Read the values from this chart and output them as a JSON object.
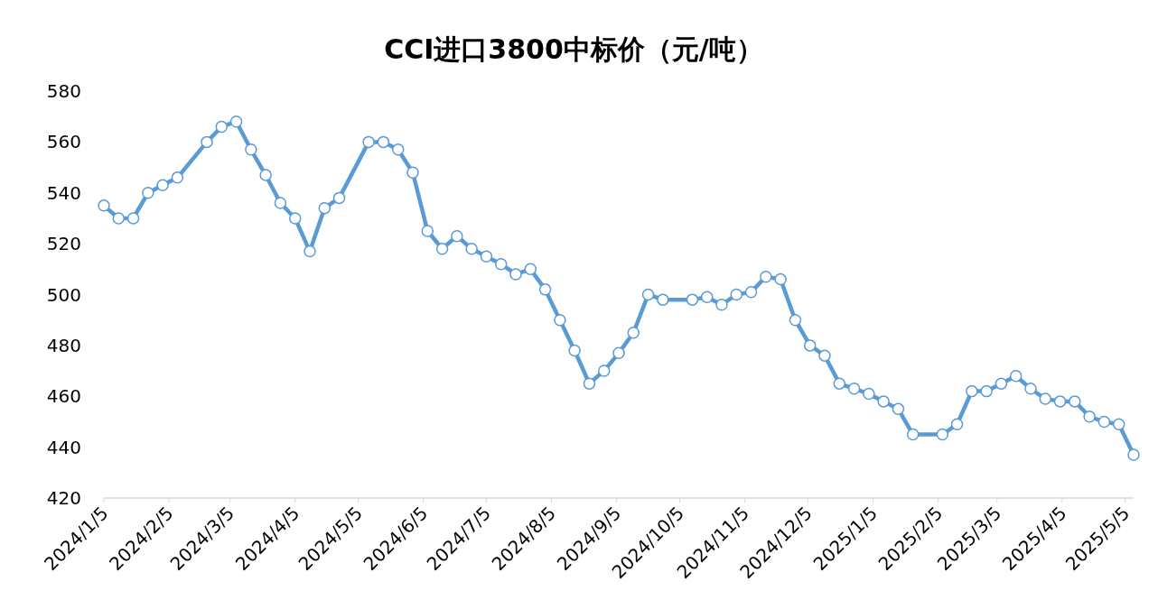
{
  "chart_data": {
    "type": "line",
    "title": "CCI进口3800中标价（元/吨）",
    "x": [
      "2024-01-05",
      "2024-01-12",
      "2024-01-19",
      "2024-01-26",
      "2024-02-02",
      "2024-02-09",
      "2024-02-23",
      "2024-03-01",
      "2024-03-08",
      "2024-03-15",
      "2024-03-22",
      "2024-03-29",
      "2024-04-05",
      "2024-04-12",
      "2024-04-19",
      "2024-04-26",
      "2024-05-10",
      "2024-05-17",
      "2024-05-24",
      "2024-05-31",
      "2024-06-07",
      "2024-06-14",
      "2024-06-21",
      "2024-06-28",
      "2024-07-05",
      "2024-07-12",
      "2024-07-19",
      "2024-07-26",
      "2024-08-02",
      "2024-08-09",
      "2024-08-16",
      "2024-08-23",
      "2024-08-30",
      "2024-09-06",
      "2024-09-13",
      "2024-09-20",
      "2024-09-27",
      "2024-10-11",
      "2024-10-18",
      "2024-10-25",
      "2024-11-01",
      "2024-11-08",
      "2024-11-15",
      "2024-11-22",
      "2024-11-29",
      "2024-12-06",
      "2024-12-13",
      "2024-12-20",
      "2024-12-27",
      "2025-01-03",
      "2025-01-10",
      "2025-01-17",
      "2025-01-24",
      "2025-02-07",
      "2025-02-14",
      "2025-02-21",
      "2025-02-28",
      "2025-03-07",
      "2025-03-14",
      "2025-03-21",
      "2025-03-28",
      "2025-04-04",
      "2025-04-11",
      "2025-04-18",
      "2025-04-25",
      "2025-05-02",
      "2025-05-09"
    ],
    "series": [
      {
        "color": "#5b9bd5",
        "values": [
          535,
          530,
          530,
          540,
          543,
          546,
          560,
          566,
          568,
          557,
          547,
          536,
          530,
          517,
          534,
          538,
          560,
          560,
          557,
          548,
          525,
          518,
          523,
          518,
          515,
          512,
          508,
          510,
          502,
          490,
          478,
          465,
          470,
          477,
          485,
          500,
          498,
          498,
          499,
          496,
          500,
          501,
          507,
          506,
          490,
          480,
          476,
          465,
          463,
          461,
          458,
          455,
          445,
          445,
          449,
          462,
          462,
          465,
          468,
          463,
          459,
          458,
          458,
          452,
          450,
          449,
          437
        ]
      }
    ],
    "xlim": [
      "2024-01-05",
      "2025-05-09"
    ],
    "xticks": [
      {
        "value": "2024-01-05",
        "label": "2024/1/5"
      },
      {
        "value": "2024-02-05",
        "label": "2024/2/5"
      },
      {
        "value": "2024-03-05",
        "label": "2024/3/5"
      },
      {
        "value": "2024-04-05",
        "label": "2024/4/5"
      },
      {
        "value": "2024-05-05",
        "label": "2024/5/5"
      },
      {
        "value": "2024-06-05",
        "label": "2024/6/5"
      },
      {
        "value": "2024-07-05",
        "label": "2024/7/5"
      },
      {
        "value": "2024-08-05",
        "label": "2024/8/5"
      },
      {
        "value": "2024-09-05",
        "label": "2024/9/5"
      },
      {
        "value": "2024-10-05",
        "label": "2024/10/5"
      },
      {
        "value": "2024-11-05",
        "label": "2024/11/5"
      },
      {
        "value": "2024-12-05",
        "label": "2024/12/5"
      },
      {
        "value": "2025-01-05",
        "label": "2025/1/5"
      },
      {
        "value": "2025-02-05",
        "label": "2025/2/5"
      },
      {
        "value": "2025-03-05",
        "label": "2025/3/5"
      },
      {
        "value": "2025-04-05",
        "label": "2025/4/5"
      },
      {
        "value": "2025-05-05",
        "label": "2025/5/5"
      }
    ],
    "ylim": [
      420,
      580
    ],
    "yticks": [
      420,
      440,
      460,
      480,
      500,
      520,
      540,
      560,
      580
    ],
    "grid": false,
    "marker": "circle",
    "line_style": "solid"
  }
}
